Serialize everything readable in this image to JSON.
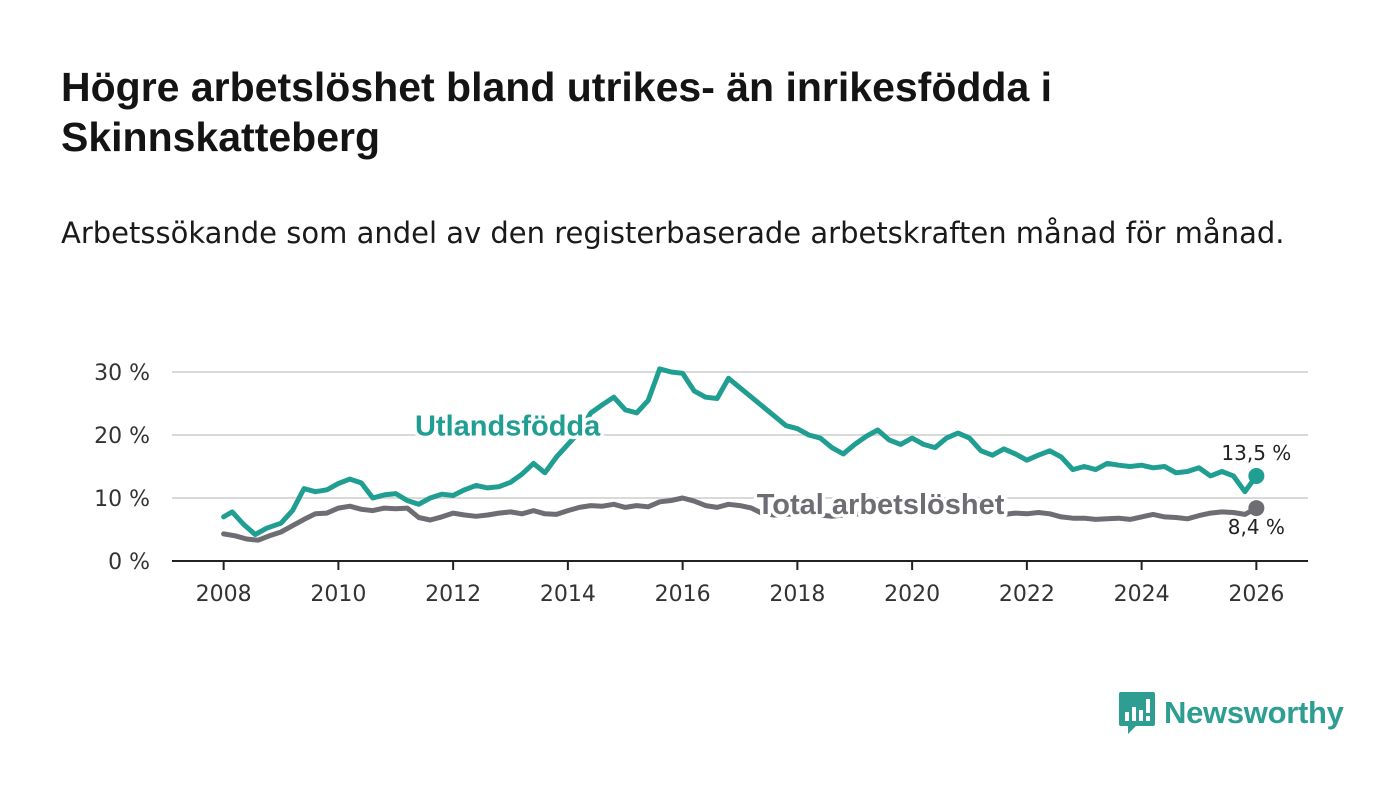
{
  "title": "Högre arbetslöshet bland utrikes- än inrikesfödda i Skinnskatteberg",
  "subtitle": "Arbetssökande som andel av den registerbaserade arbetskraften månad för månad.",
  "logo": {
    "text": "Newsworthy",
    "icon": "newsworthy-logo-icon",
    "color": "#2e9e92"
  },
  "chart_data": {
    "type": "line",
    "title": "Högre arbetslöshet bland utrikes- än inrikesfödda i Skinnskatteberg",
    "xlabel": "",
    "ylabel": "",
    "xlim": [
      2007.1,
      2026.9
    ],
    "ylim": [
      0,
      30
    ],
    "grid": true,
    "x_ticks": [
      2008,
      2010,
      2012,
      2014,
      2016,
      2018,
      2020,
      2022,
      2024,
      2026
    ],
    "x_tick_labels": [
      "2008",
      "2010",
      "2012",
      "2014",
      "2016",
      "2018",
      "2020",
      "2022",
      "2024",
      "2026"
    ],
    "y_ticks": [
      0,
      10,
      20,
      30
    ],
    "y_tick_labels": [
      "0 %",
      "10 %",
      "20 %",
      "30 %"
    ],
    "series": [
      {
        "name": "Total arbetslöshet",
        "color": "#6e6d73",
        "label_x": 2019.45,
        "label_y": 7.5,
        "end_label": "8,4 %",
        "end_value": 8.4,
        "points": [
          [
            2008.0,
            4.3
          ],
          [
            2008.2,
            4.0
          ],
          [
            2008.4,
            3.5
          ],
          [
            2008.6,
            3.3
          ],
          [
            2008.8,
            4.0
          ],
          [
            2009.0,
            4.6
          ],
          [
            2009.2,
            5.6
          ],
          [
            2009.4,
            6.6
          ],
          [
            2009.6,
            7.5
          ],
          [
            2009.8,
            7.6
          ],
          [
            2010.0,
            8.4
          ],
          [
            2010.2,
            8.7
          ],
          [
            2010.4,
            8.2
          ],
          [
            2010.6,
            8.0
          ],
          [
            2010.8,
            8.4
          ],
          [
            2011.0,
            8.3
          ],
          [
            2011.2,
            8.4
          ],
          [
            2011.4,
            6.9
          ],
          [
            2011.6,
            6.5
          ],
          [
            2011.8,
            7.0
          ],
          [
            2012.0,
            7.6
          ],
          [
            2012.2,
            7.3
          ],
          [
            2012.4,
            7.1
          ],
          [
            2012.6,
            7.3
          ],
          [
            2012.8,
            7.6
          ],
          [
            2013.0,
            7.8
          ],
          [
            2013.2,
            7.5
          ],
          [
            2013.4,
            8.0
          ],
          [
            2013.6,
            7.5
          ],
          [
            2013.8,
            7.4
          ],
          [
            2014.0,
            8.0
          ],
          [
            2014.2,
            8.5
          ],
          [
            2014.4,
            8.8
          ],
          [
            2014.6,
            8.7
          ],
          [
            2014.8,
            9.0
          ],
          [
            2015.0,
            8.5
          ],
          [
            2015.2,
            8.8
          ],
          [
            2015.4,
            8.6
          ],
          [
            2015.6,
            9.4
          ],
          [
            2015.8,
            9.6
          ],
          [
            2016.0,
            10.0
          ],
          [
            2016.2,
            9.5
          ],
          [
            2016.4,
            8.8
          ],
          [
            2016.6,
            8.5
          ],
          [
            2016.8,
            9.0
          ],
          [
            2017.0,
            8.8
          ],
          [
            2017.2,
            8.4
          ],
          [
            2017.4,
            7.5
          ],
          [
            2017.6,
            7.3
          ],
          [
            2017.8,
            7.4
          ],
          [
            2018.0,
            7.6
          ],
          [
            2018.2,
            7.5
          ],
          [
            2018.4,
            7.3
          ],
          [
            2018.6,
            7.1
          ],
          [
            2018.8,
            7.3
          ],
          [
            2019.0,
            7.5
          ],
          [
            2019.2,
            7.4
          ],
          [
            2021.6,
            7.4
          ],
          [
            2021.8,
            7.6
          ],
          [
            2022.0,
            7.5
          ],
          [
            2022.2,
            7.7
          ],
          [
            2022.4,
            7.5
          ],
          [
            2022.6,
            7.0
          ],
          [
            2022.8,
            6.8
          ],
          [
            2023.0,
            6.8
          ],
          [
            2023.2,
            6.6
          ],
          [
            2023.4,
            6.7
          ],
          [
            2023.6,
            6.8
          ],
          [
            2023.8,
            6.6
          ],
          [
            2024.0,
            7.0
          ],
          [
            2024.2,
            7.4
          ],
          [
            2024.4,
            7.0
          ],
          [
            2024.6,
            6.9
          ],
          [
            2024.8,
            6.7
          ],
          [
            2025.0,
            7.2
          ],
          [
            2025.2,
            7.6
          ],
          [
            2025.4,
            7.8
          ],
          [
            2025.6,
            7.7
          ],
          [
            2025.8,
            7.4
          ],
          [
            2026.0,
            8.4
          ]
        ]
      },
      {
        "name": "Utlandsfödda",
        "color": "#1f9e91",
        "label_x": 2012.95,
        "label_y": 19.9,
        "end_label": "13,5 %",
        "end_value": 13.5,
        "points": [
          [
            2008.0,
            7.0
          ],
          [
            2008.15,
            7.8
          ],
          [
            2008.35,
            5.8
          ],
          [
            2008.55,
            4.2
          ],
          [
            2008.75,
            5.2
          ],
          [
            2009.0,
            6.0
          ],
          [
            2009.2,
            8.0
          ],
          [
            2009.4,
            11.5
          ],
          [
            2009.6,
            11.0
          ],
          [
            2009.8,
            11.3
          ],
          [
            2010.0,
            12.3
          ],
          [
            2010.2,
            13.0
          ],
          [
            2010.4,
            12.4
          ],
          [
            2010.6,
            10.0
          ],
          [
            2010.8,
            10.5
          ],
          [
            2011.0,
            10.7
          ],
          [
            2011.2,
            9.6
          ],
          [
            2011.4,
            9.0
          ],
          [
            2011.6,
            10.0
          ],
          [
            2011.8,
            10.6
          ],
          [
            2012.0,
            10.4
          ],
          [
            2012.2,
            11.3
          ],
          [
            2012.4,
            12.0
          ],
          [
            2012.6,
            11.6
          ],
          [
            2012.8,
            11.8
          ],
          [
            2013.0,
            12.5
          ],
          [
            2013.2,
            13.8
          ],
          [
            2013.4,
            15.5
          ],
          [
            2013.6,
            14.0
          ],
          [
            2013.8,
            16.5
          ],
          [
            2014.0,
            18.5
          ],
          [
            2014.2,
            20.5
          ],
          [
            2014.4,
            23.5
          ],
          [
            2014.6,
            24.8
          ],
          [
            2014.8,
            26.0
          ],
          [
            2015.0,
            24.0
          ],
          [
            2015.2,
            23.5
          ],
          [
            2015.4,
            25.5
          ],
          [
            2015.6,
            30.5
          ],
          [
            2015.8,
            30.0
          ],
          [
            2016.0,
            29.8
          ],
          [
            2016.2,
            27.0
          ],
          [
            2016.4,
            26.0
          ],
          [
            2016.6,
            25.8
          ],
          [
            2016.8,
            29.0
          ],
          [
            2017.0,
            27.5
          ],
          [
            2017.2,
            26.0
          ],
          [
            2017.4,
            24.5
          ],
          [
            2017.6,
            23.0
          ],
          [
            2017.8,
            21.5
          ],
          [
            2018.0,
            21.0
          ],
          [
            2018.2,
            20.0
          ],
          [
            2018.4,
            19.5
          ],
          [
            2018.6,
            18.0
          ],
          [
            2018.8,
            17.0
          ],
          [
            2019.0,
            18.5
          ],
          [
            2019.2,
            19.8
          ],
          [
            2019.4,
            20.8
          ],
          [
            2019.6,
            19.2
          ],
          [
            2019.8,
            18.5
          ],
          [
            2020.0,
            19.5
          ],
          [
            2020.2,
            18.5
          ],
          [
            2020.4,
            18.0
          ],
          [
            2020.6,
            19.5
          ],
          [
            2020.8,
            20.3
          ],
          [
            2021.0,
            19.5
          ],
          [
            2021.2,
            17.5
          ],
          [
            2021.4,
            16.8
          ],
          [
            2021.6,
            17.8
          ],
          [
            2021.8,
            17.0
          ],
          [
            2022.0,
            16.0
          ],
          [
            2022.2,
            16.8
          ],
          [
            2022.4,
            17.5
          ],
          [
            2022.6,
            16.5
          ],
          [
            2022.8,
            14.5
          ],
          [
            2023.0,
            15.0
          ],
          [
            2023.2,
            14.5
          ],
          [
            2023.4,
            15.5
          ],
          [
            2023.6,
            15.2
          ],
          [
            2023.8,
            15.0
          ],
          [
            2024.0,
            15.2
          ],
          [
            2024.2,
            14.8
          ],
          [
            2024.4,
            15.0
          ],
          [
            2024.6,
            14.0
          ],
          [
            2024.8,
            14.2
          ],
          [
            2025.0,
            14.8
          ],
          [
            2025.2,
            13.5
          ],
          [
            2025.4,
            14.2
          ],
          [
            2025.6,
            13.5
          ],
          [
            2025.8,
            11.0
          ],
          [
            2026.0,
            13.5
          ]
        ]
      }
    ]
  }
}
